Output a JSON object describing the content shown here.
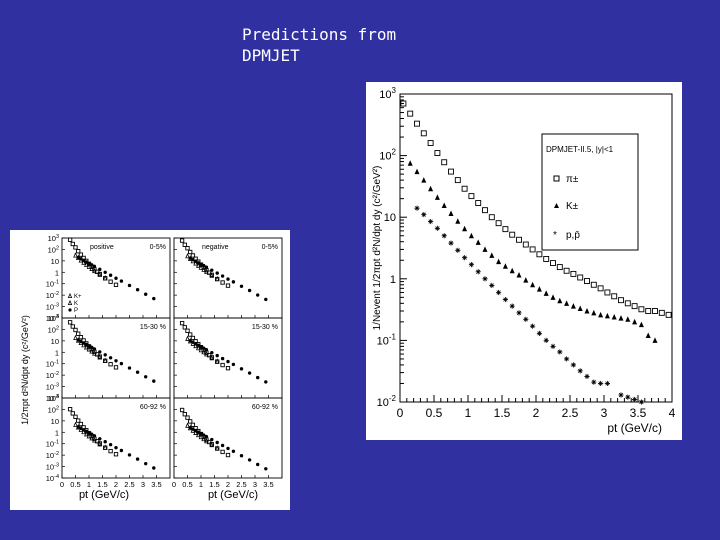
{
  "slide": {
    "title_line1": "Predictions from",
    "title_line2": "DPMJET"
  },
  "colors": {
    "background": "#3030a0",
    "title_text": "#ffffff",
    "panel": "#ffffff"
  },
  "chart_data": [
    {
      "type": "scatter",
      "title": "",
      "xlabel": "pt (GeV/c)",
      "ylabel": "1/Nevent 1/2πpt d²N/dpt dy (c²/GeV²)",
      "yscale": "log",
      "xlim": [
        0,
        4
      ],
      "ylim": [
        0.01,
        1000
      ],
      "x_ticks": [
        "0",
        "0.5",
        "1",
        "1.5",
        "2",
        "2.5",
        "3",
        "3.5",
        "4"
      ],
      "y_ticks": [
        "10^-2",
        "10^-1",
        "1",
        "10",
        "10^2",
        "10^3"
      ],
      "legend": {
        "title": "DPMJET-II.5, |y|<1",
        "position": "top-right",
        "entries": [
          "π±",
          "K±",
          "p,p̄"
        ]
      },
      "series": [
        {
          "name": "π±",
          "marker": "open-square",
          "x": [
            0.05,
            0.15,
            0.25,
            0.35,
            0.45,
            0.55,
            0.65,
            0.75,
            0.85,
            0.95,
            1.05,
            1.15,
            1.25,
            1.35,
            1.45,
            1.55,
            1.65,
            1.75,
            1.85,
            1.95,
            2.05,
            2.15,
            2.25,
            2.35,
            2.45,
            2.55,
            2.65,
            2.75,
            2.85,
            2.95,
            3.05,
            3.15,
            3.25,
            3.35,
            3.45,
            3.55,
            3.65,
            3.75,
            3.85,
            3.95
          ],
          "y": [
            700,
            480,
            330,
            230,
            160,
            110,
            78,
            55,
            40,
            29,
            22,
            17,
            13,
            10,
            8,
            6.4,
            5.2,
            4.3,
            3.6,
            3.0,
            2.5,
            2.1,
            1.8,
            1.55,
            1.35,
            1.2,
            1.05,
            0.92,
            0.8,
            0.7,
            0.6,
            0.52,
            0.45,
            0.4,
            0.36,
            0.32,
            0.3,
            0.3,
            0.28,
            0.26
          ]
        },
        {
          "name": "K±",
          "marker": "filled-triangle",
          "x": [
            0.15,
            0.25,
            0.35,
            0.45,
            0.55,
            0.65,
            0.75,
            0.85,
            0.95,
            1.05,
            1.15,
            1.25,
            1.35,
            1.45,
            1.55,
            1.65,
            1.75,
            1.85,
            1.95,
            2.05,
            2.15,
            2.25,
            2.35,
            2.45,
            2.55,
            2.65,
            2.75,
            2.85,
            2.95,
            3.05,
            3.15,
            3.25,
            3.35,
            3.45,
            3.55,
            3.65,
            3.75
          ],
          "y": [
            75,
            55,
            40,
            29,
            21,
            15.5,
            11.5,
            8.6,
            6.5,
            5.0,
            3.9,
            3.0,
            2.4,
            1.9,
            1.6,
            1.35,
            1.15,
            0.95,
            0.8,
            0.68,
            0.58,
            0.5,
            0.44,
            0.4,
            0.36,
            0.33,
            0.3,
            0.28,
            0.26,
            0.25,
            0.24,
            0.23,
            0.22,
            0.2,
            0.18,
            0.12,
            0.1
          ]
        },
        {
          "name": "p,p̄",
          "marker": "star",
          "x": [
            0.25,
            0.35,
            0.45,
            0.55,
            0.65,
            0.75,
            0.85,
            0.95,
            1.05,
            1.15,
            1.25,
            1.35,
            1.45,
            1.55,
            1.65,
            1.75,
            1.85,
            1.95,
            2.05,
            2.15,
            2.25,
            2.35,
            2.45,
            2.55,
            2.65,
            2.75,
            2.85,
            2.95,
            3.05,
            3.25,
            3.35,
            3.45,
            3.55
          ],
          "y": [
            14,
            11,
            8.5,
            6.6,
            5.0,
            3.8,
            2.9,
            2.2,
            1.7,
            1.3,
            1.0,
            0.78,
            0.6,
            0.46,
            0.36,
            0.28,
            0.22,
            0.17,
            0.13,
            0.1,
            0.08,
            0.065,
            0.05,
            0.04,
            0.032,
            0.026,
            0.021,
            0.02,
            0.02,
            0.013,
            0.012,
            0.011,
            0.01
          ]
        }
      ]
    },
    {
      "type": "scatter",
      "title": "",
      "xlabel": "pt (GeV/c)",
      "ylabel": "1/2πpt d²N/dpt dy (c²/GeV²)",
      "yscale": "log",
      "xlim": [
        0,
        4
      ],
      "ylim": [
        0.0001,
        1000
      ],
      "x_ticks": [
        "0",
        "0.5",
        "1",
        "1.5",
        "2",
        "2.5",
        "3",
        "3.5"
      ],
      "y_ticks": [
        "10^-4",
        "10^-3",
        "10^-2",
        "10^-1",
        "1",
        "10",
        "10^2",
        "10^3"
      ],
      "legend_entries": [
        "K+",
        "K",
        "P"
      ],
      "panels": [
        {
          "label": "positive",
          "centrality": "0-5%",
          "row": 0,
          "col": 0
        },
        {
          "label": "negative",
          "centrality": "0-5%",
          "row": 0,
          "col": 1
        },
        {
          "label": "",
          "centrality": "15-30 %",
          "row": 1,
          "col": 0
        },
        {
          "label": "",
          "centrality": "15-30 %",
          "row": 1,
          "col": 1
        },
        {
          "label": "",
          "centrality": "60-92 %",
          "row": 2,
          "col": 0
        },
        {
          "label": "",
          "centrality": "60-92 %",
          "row": 2,
          "col": 1
        }
      ],
      "series": [
        {
          "name": "pi",
          "marker": "open-square",
          "x": [
            0.3,
            0.4,
            0.5,
            0.6,
            0.7,
            0.8,
            0.9,
            1.0,
            1.1,
            1.2,
            1.3,
            1.4,
            1.6,
            1.8,
            2.0
          ],
          "y": [
            700,
            300,
            150,
            70,
            35,
            18,
            10,
            5.5,
            3,
            1.8,
            1.1,
            0.7,
            0.3,
            0.15,
            0.08
          ]
        },
        {
          "name": "K",
          "marker": "open-triangle",
          "x": [
            0.5,
            0.6,
            0.7,
            0.8,
            0.9,
            1.0,
            1.1,
            1.2,
            1.4,
            1.6
          ],
          "y": [
            30,
            18,
            11,
            7,
            4.5,
            3,
            2,
            1.3,
            0.6,
            0.3
          ]
        },
        {
          "name": "p",
          "marker": "filled-circle",
          "x": [
            0.6,
            0.7,
            0.8,
            0.9,
            1.0,
            1.1,
            1.2,
            1.4,
            1.6,
            1.8,
            2.0,
            2.2,
            2.5,
            2.8,
            3.1,
            3.4
          ],
          "y": [
            20,
            15,
            11,
            8,
            6,
            4.5,
            3.3,
            1.8,
            1.0,
            0.55,
            0.3,
            0.17,
            0.07,
            0.03,
            0.012,
            0.005
          ]
        }
      ]
    }
  ]
}
